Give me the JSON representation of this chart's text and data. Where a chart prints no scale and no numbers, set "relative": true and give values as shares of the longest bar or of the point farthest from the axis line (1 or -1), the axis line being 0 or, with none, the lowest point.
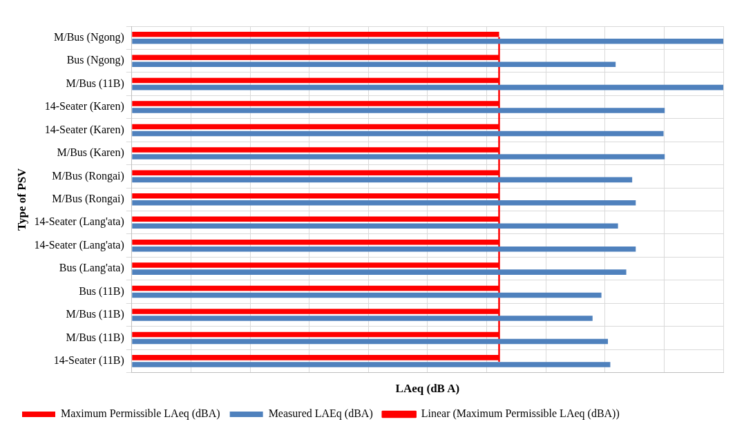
{
  "chart_data": {
    "type": "bar",
    "orientation": "horizontal",
    "relative": true,
    "xlabel": "LAeq (dB A)",
    "ylabel": "Type of PSV",
    "categories": [
      "M/Bus (Ngong)",
      "Bus (Ngong)",
      "M/Bus (11B)",
      "14-Seater (Karen)",
      "14-Seater (Karen)",
      "M/Bus (Karen)",
      "M/Bus (Rongai)",
      "M/Bus (Rongai)",
      "14-Seater (Lang'ata)",
      "14-Seater (Lang'ata)",
      "Bus (Lang'ata)",
      "Bus (11B)",
      "M/Bus (11B)",
      "M/Bus (11B)",
      "14-Seater (11B)"
    ],
    "series": [
      {
        "name": "Maximum Permissible LAeq (dBA)",
        "color": "#ff0000",
        "values": [
          0.621,
          0.621,
          0.621,
          0.621,
          0.621,
          0.621,
          0.621,
          0.621,
          0.621,
          0.621,
          0.621,
          0.621,
          0.621,
          0.621,
          0.621
        ]
      },
      {
        "name": "Measured LAEq (dBA)",
        "color": "#4f81bd",
        "values": [
          1,
          0.818,
          1,
          0.901,
          0.899,
          0.901,
          0.846,
          0.852,
          0.822,
          0.852,
          0.836,
          0.794,
          0.779,
          0.805,
          0.809
        ]
      },
      {
        "type": "line",
        "name": "Linear (Maximum Permissible LAeq (dBA))",
        "color": "#ff0000",
        "values": [
          0.621,
          0.621,
          0.621,
          0.621,
          0.621,
          0.621,
          0.621,
          0.621,
          0.621,
          0.621,
          0.621,
          0.621,
          0.621,
          0.621,
          0.621
        ]
      }
    ],
    "grid": true,
    "legend": "bottom"
  }
}
